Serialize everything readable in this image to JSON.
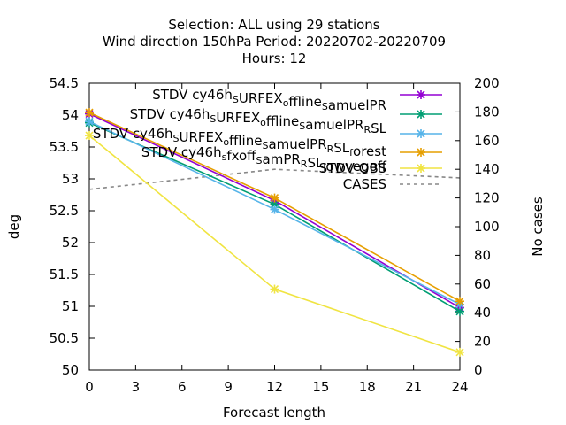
{
  "chart_data": {
    "type": "line",
    "title_lines": [
      "Selection: ALL using    29 stations",
      "Wind direction 150hPa   Period: 20220702-20220709",
      "Hours:  12"
    ],
    "xlabel": "Forecast length",
    "ylabel": "deg",
    "y2label": "No cases",
    "xlim": [
      0,
      24
    ],
    "ylim": [
      50,
      54.5
    ],
    "y2lim": [
      0,
      200
    ],
    "x_ticks": [
      0,
      3,
      6,
      9,
      12,
      15,
      18,
      21,
      24
    ],
    "y_ticks": [
      "50",
      "50.5",
      "51",
      "51.5",
      "52",
      "52.5",
      "53",
      "53.5",
      "54",
      "54.5"
    ],
    "y2_ticks": [
      0,
      20,
      40,
      60,
      80,
      100,
      120,
      140,
      160,
      180,
      200
    ],
    "grid": false,
    "legend_position": "top-right",
    "series": [
      {
        "name": "STDV cy46h_S URFEX_o ffline_S amuelPR",
        "legend_main": [
          "STDV cy46h",
          "URFEX",
          "ffline",
          "amuelPR"
        ],
        "legend_sub": [
          "S",
          "o",
          "S"
        ],
        "color": "#9400d3",
        "x": [
          0,
          12,
          24
        ],
        "y": [
          54.02,
          52.66,
          50.98
        ]
      },
      {
        "name": "STDV cy46h_S URFEX_o ffline_S amuelPR_R SL",
        "legend_main": [
          "STDV cy46h",
          "URFEX",
          "ffline",
          "amuelPR",
          "SL"
        ],
        "legend_sub": [
          "S",
          "o",
          "S",
          "R"
        ],
        "color": "#009e73",
        "x": [
          0,
          12,
          24
        ],
        "y": [
          53.88,
          52.6,
          50.92
        ]
      },
      {
        "name": "STDV cy46h_S URFEX_o ffline_S amuelPR_R SL_f orest",
        "legend_main": [
          "STDV cy46h",
          "URFEX",
          "ffline",
          "amuelPR",
          "SL",
          "orest"
        ],
        "legend_sub": [
          "S",
          "o",
          "S",
          "R",
          "f"
        ],
        "color": "#56b4e9",
        "x": [
          0,
          12,
          24
        ],
        "y": [
          53.9,
          52.52,
          51.03
        ]
      },
      {
        "name": "STDV cy46h_s fxoff_S amPR_R SL_l owvegoff",
        "legend_main": [
          "STDV cy46h",
          "fxoff",
          "amPR",
          "SL",
          "owvegoff"
        ],
        "legend_sub": [
          "s",
          "S",
          "R",
          "l"
        ],
        "color": "#e69f00",
        "x": [
          0,
          12,
          24
        ],
        "y": [
          54.04,
          52.7,
          51.08
        ]
      },
      {
        "name": "STDV OBS",
        "legend_main": [
          "STDV OBS"
        ],
        "legend_sub": [],
        "color": "#f0e442",
        "x": [
          0,
          12,
          24
        ],
        "y": [
          53.68,
          51.27,
          50.28
        ]
      }
    ],
    "cases": {
      "name": "CASES",
      "color": "#888888",
      "axis": "y2",
      "x": [
        0,
        12,
        24
      ],
      "y": [
        126,
        140,
        134
      ]
    }
  }
}
